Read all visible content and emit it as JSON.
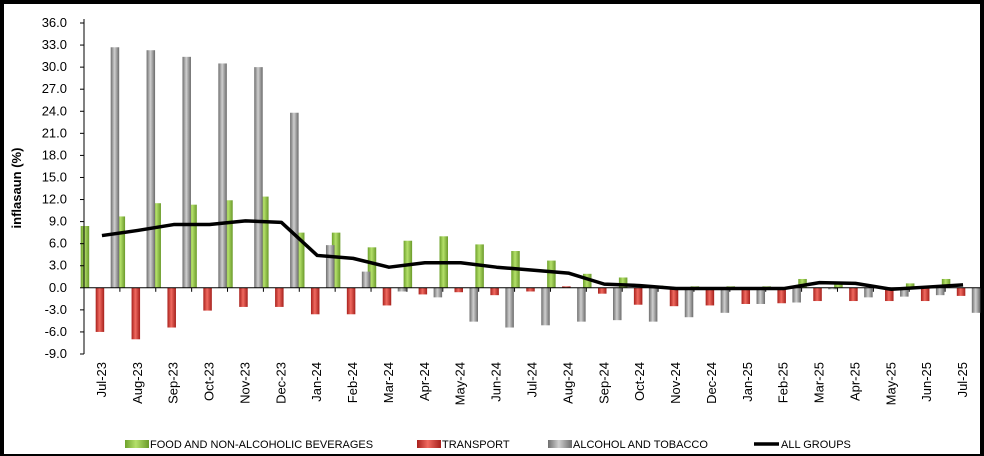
{
  "chart_data": {
    "type": "bar",
    "ylabel": "inflasaun (%)",
    "ylim": [
      -9.0,
      36.0
    ],
    "y_ticks": [
      "36.0",
      "33.0",
      "30.0",
      "27.0",
      "24.0",
      "21.0",
      "18.0",
      "15.0",
      "12.0",
      "9.0",
      "6.0",
      "3.0",
      "0.0",
      "-3.0",
      "-6.0",
      "-9.0"
    ],
    "categories": [
      "Jul-23",
      "Aug-23",
      "Sep-23",
      "Oct-23",
      "Nov-23",
      "Dec-23",
      "Jan-24",
      "Feb-24",
      "Mar-24",
      "Apr-24",
      "May-24",
      "Jun-24",
      "Jul-24",
      "Aug-24",
      "Sep-24",
      "Oct-24",
      "Nov-24",
      "Dec-24",
      "Jan-25",
      "Feb-25",
      "Mar-25",
      "Apr-25",
      "May-25",
      "Jun-25",
      "Jul-25"
    ],
    "series": [
      {
        "name": "FOOD AND NON-ALCOHOLIC BEVERAGES",
        "kind": "bar",
        "color": "#8cc63f",
        "values": [
          8.4,
          9.7,
          11.5,
          11.3,
          11.9,
          12.4,
          7.5,
          7.5,
          5.5,
          6.4,
          7.0,
          5.9,
          5.0,
          3.7,
          1.9,
          1.4,
          0.3,
          0.2,
          0.2,
          0.2,
          1.2,
          0.8,
          0.3,
          0.6,
          1.2
        ]
      },
      {
        "name": "TRANSPORT",
        "kind": "bar",
        "color": "#d9302c",
        "values": [
          -6.0,
          -7.0,
          -5.4,
          -3.1,
          -2.6,
          -2.6,
          -3.6,
          -3.6,
          -2.4,
          -0.9,
          -0.6,
          -1.0,
          -0.5,
          0.2,
          -0.8,
          -2.3,
          -2.5,
          -2.4,
          -2.2,
          -2.1,
          -1.8,
          -1.8,
          -1.8,
          -1.8,
          -1.1
        ]
      },
      {
        "name": "ALCOHOL AND TOBACCO",
        "kind": "bar",
        "color": "#999999",
        "values": [
          32.7,
          32.3,
          31.4,
          30.5,
          30.0,
          23.8,
          5.8,
          2.2,
          -0.5,
          -1.3,
          -4.6,
          -5.4,
          -5.1,
          -4.6,
          -4.4,
          -4.6,
          -4.0,
          -3.4,
          -2.2,
          -2.0,
          -0.2,
          -1.3,
          -1.2,
          -1.0,
          -3.4
        ]
      },
      {
        "name": "ALL GROUPS",
        "kind": "line",
        "color": "#000000",
        "values": [
          7.1,
          7.8,
          8.6,
          8.6,
          9.1,
          8.9,
          4.4,
          4.0,
          2.8,
          3.4,
          3.4,
          2.8,
          2.4,
          2.0,
          0.5,
          0.3,
          -0.1,
          -0.1,
          -0.1,
          -0.1,
          0.7,
          0.6,
          -0.2,
          0.1,
          0.4
        ]
      }
    ],
    "grid": false,
    "legend_position": "bottom"
  }
}
